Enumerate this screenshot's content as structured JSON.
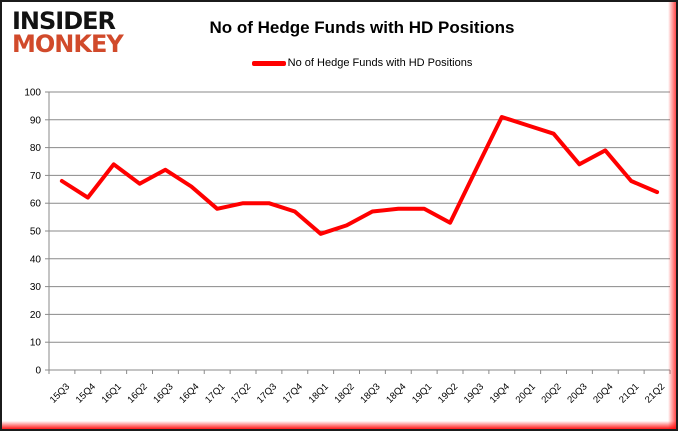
{
  "branding": {
    "logo_line1": "INSIDER",
    "logo_line2": "MONKEY",
    "logo_color_top": "#121212",
    "logo_color_bottom": "#d14a2b"
  },
  "header": {
    "title": "No of Hedge Funds with HD Positions"
  },
  "legend": {
    "label": "No of Hedge Funds with HD Positions",
    "marker_color": "#ff0000"
  },
  "colors": {
    "line": "#ff0000",
    "grid": "#8a8a8a",
    "axis": "#8a8a8a",
    "tick_text": "#000000",
    "background": "#ffffff",
    "frame_border": "#1b1b1b",
    "edge_glow": "#ff1a1a"
  },
  "chart_data": {
    "type": "line",
    "title": "No of Hedge Funds with HD Positions",
    "xlabel": "",
    "ylabel": "",
    "ylim": [
      0,
      100
    ],
    "ytick_step": 10,
    "grid": true,
    "legend_position": "top",
    "categories": [
      "15Q3",
      "15Q4",
      "16Q1",
      "16Q2",
      "16Q3",
      "16Q4",
      "17Q1",
      "17Q2",
      "17Q3",
      "17Q4",
      "18Q1",
      "18Q2",
      "18Q3",
      "18Q4",
      "19Q1",
      "19Q2",
      "19Q3",
      "19Q4",
      "20Q1",
      "20Q2",
      "20Q3",
      "20Q4",
      "21Q1",
      "21Q2"
    ],
    "series": [
      {
        "name": "No of Hedge Funds with HD Positions",
        "color": "#ff0000",
        "values": [
          68,
          62,
          74,
          67,
          72,
          66,
          58,
          60,
          60,
          57,
          49,
          52,
          57,
          58,
          58,
          53,
          72,
          91,
          88,
          85,
          74,
          79,
          68,
          64
        ]
      }
    ]
  }
}
